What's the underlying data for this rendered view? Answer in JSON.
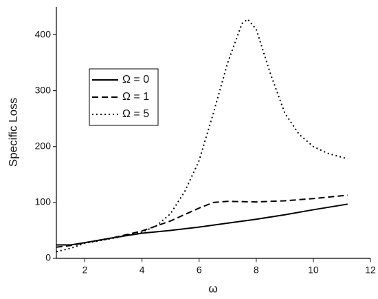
{
  "chart_data": {
    "type": "line",
    "x_label": "ω",
    "y_label": "Specific Loss",
    "xlim": [
      1,
      12
    ],
    "ylim": [
      0,
      450
    ],
    "xticks": [
      2,
      4,
      6,
      8,
      10,
      12
    ],
    "yticks": [
      0,
      100,
      200,
      300,
      400
    ],
    "series": [
      {
        "name": "Ω = 0",
        "color": "#000000",
        "dash": "solid",
        "x": [
          1,
          1.5,
          2,
          3,
          4,
          5,
          6,
          7,
          8,
          9,
          10,
          11.2
        ],
        "values": [
          24,
          24,
          28,
          37,
          45,
          50,
          56,
          63,
          70,
          78,
          87,
          97
        ]
      },
      {
        "name": "Ω = 1",
        "color": "#000000",
        "dash": "dashed",
        "x": [
          1,
          1.5,
          2,
          3,
          4,
          5,
          6,
          6.5,
          7,
          8,
          9,
          10,
          11.2
        ],
        "values": [
          20,
          23,
          28,
          37,
          49,
          67,
          90,
          100,
          102,
          101,
          103,
          107,
          113
        ]
      },
      {
        "name": "Ω = 5",
        "color": "#000000",
        "dash": "dotted",
        "x": [
          1,
          1.5,
          2,
          3,
          4,
          4.5,
          5,
          5.5,
          6,
          6.5,
          7,
          7.5,
          7.7,
          8,
          8.5,
          9,
          9.5,
          10,
          10.5,
          11.2
        ],
        "values": [
          12,
          18,
          27,
          36,
          47,
          58,
          80,
          120,
          175,
          260,
          350,
          420,
          428,
          410,
          330,
          260,
          222,
          200,
          188,
          178
        ]
      }
    ]
  }
}
